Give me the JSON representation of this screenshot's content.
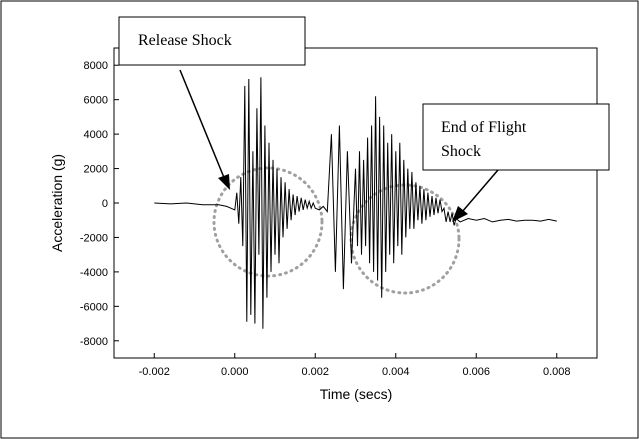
{
  "chart_data": {
    "type": "line",
    "title": "",
    "xlabel": "Time (secs)",
    "ylabel": "Acceleration (g)",
    "xlim": [
      -0.003,
      0.009
    ],
    "ylim": [
      -9000,
      9000
    ],
    "x_ticks": [
      -0.002,
      0.0,
      0.002,
      0.004,
      0.006,
      0.008
    ],
    "x_tick_labels": [
      "-0.002",
      "0.000",
      "0.002",
      "0.004",
      "0.006",
      "0.008"
    ],
    "y_ticks": [
      -8000,
      -6000,
      -4000,
      -2000,
      0,
      2000,
      4000,
      6000,
      8000
    ],
    "y_tick_labels": [
      "-8000",
      "-6000",
      "-4000",
      "-2000",
      "0",
      "2000",
      "4000",
      "6000",
      "8000"
    ],
    "grid": false,
    "series": [
      {
        "color": "#000000",
        "x": [
          -0.002,
          -0.0016,
          -0.0012,
          -0.0008,
          -0.0004,
          -0.0002,
          0.0,
          5e-05,
          0.0001,
          0.00015,
          0.0002,
          0.00025,
          0.0003,
          0.00035,
          0.0004,
          0.00045,
          0.0005,
          0.00055,
          0.0006,
          0.00065,
          0.0007,
          0.00075,
          0.0008,
          0.00085,
          0.0009,
          0.00095,
          0.001,
          0.00105,
          0.0011,
          0.00115,
          0.0012,
          0.00125,
          0.0013,
          0.00135,
          0.0014,
          0.00145,
          0.0015,
          0.00155,
          0.0016,
          0.00165,
          0.0017,
          0.00175,
          0.0018,
          0.00185,
          0.0019,
          0.00195,
          0.002,
          0.0021,
          0.0022,
          0.0023,
          0.0024,
          0.0025,
          0.0026,
          0.0027,
          0.0028,
          0.0029,
          0.003,
          0.00305,
          0.0031,
          0.00315,
          0.0032,
          0.00325,
          0.0033,
          0.00335,
          0.0034,
          0.00345,
          0.0035,
          0.00355,
          0.0036,
          0.00365,
          0.0037,
          0.00375,
          0.0038,
          0.00385,
          0.0039,
          0.00395,
          0.004,
          0.00405,
          0.0041,
          0.00415,
          0.0042,
          0.00425,
          0.0043,
          0.00435,
          0.0044,
          0.00445,
          0.0045,
          0.00455,
          0.0046,
          0.00465,
          0.0047,
          0.00475,
          0.0048,
          0.00485,
          0.0049,
          0.00495,
          0.005,
          0.00505,
          0.0051,
          0.00515,
          0.0052,
          0.00525,
          0.0053,
          0.00535,
          0.0054,
          0.00545,
          0.0055,
          0.0056,
          0.0058,
          0.006,
          0.0062,
          0.0064,
          0.0066,
          0.0068,
          0.007,
          0.0072,
          0.0074,
          0.0076,
          0.0078,
          0.008
        ],
        "y": [
          0,
          -50,
          0,
          -100,
          -100,
          -200,
          -400,
          600,
          -1200,
          1500,
          -2500,
          6800,
          -6900,
          7200,
          -6500,
          3000,
          -7000,
          5500,
          -3000,
          7300,
          -7300,
          4500,
          -5500,
          3500,
          -4000,
          2500,
          -3000,
          2000,
          -3500,
          1500,
          -2000,
          1200,
          -1500,
          800,
          -1000,
          500,
          -700,
          400,
          -500,
          300,
          -400,
          200,
          -300,
          100,
          -300,
          0,
          -300,
          -400,
          -200,
          -500,
          4000,
          -4000,
          4500,
          -5000,
          3000,
          -3500,
          2000,
          -2500,
          3000,
          -3000,
          2500,
          -2500,
          3800,
          -3500,
          4500,
          -4000,
          6200,
          -4500,
          5000,
          -5500,
          4500,
          -4000,
          3500,
          -3000,
          4000,
          -3500,
          3000,
          -2500,
          3500,
          -3000,
          2500,
          -2000,
          2000,
          -1500,
          1800,
          -1500,
          1200,
          -1000,
          1000,
          -1200,
          800,
          -1000,
          600,
          -800,
          400,
          -700,
          300,
          -600,
          200,
          -500,
          -300,
          -1100,
          -500,
          -1100,
          -600,
          -1300,
          -900,
          -1100,
          -900,
          -1000,
          -900,
          -1100,
          -1000,
          -950,
          -1050,
          -1000,
          -1000,
          -1050,
          -950,
          -1050
        ]
      }
    ],
    "annotations": [
      {
        "lines": [
          "Release Shock"
        ]
      },
      {
        "lines": [
          "End of Flight",
          "Shock"
        ]
      }
    ]
  }
}
